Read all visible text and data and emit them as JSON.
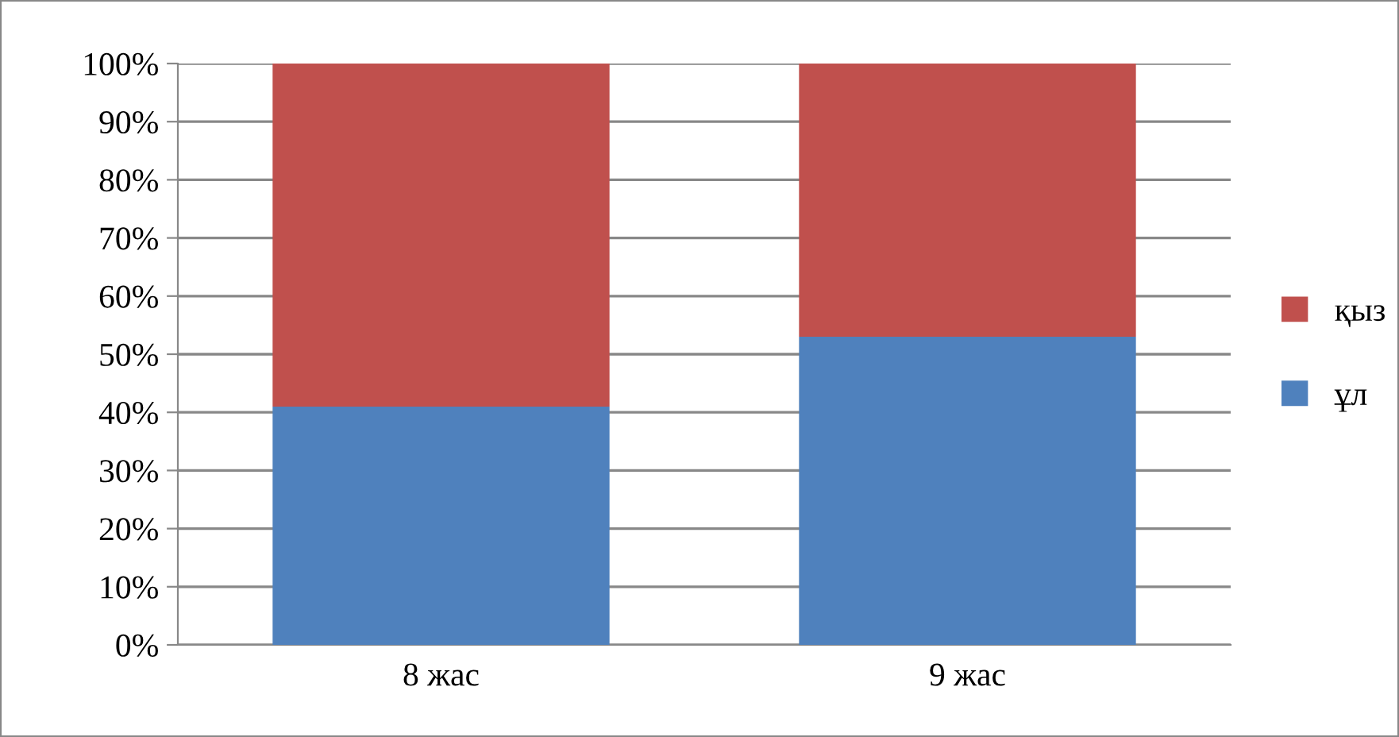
{
  "chart_data": {
    "type": "bar",
    "stacked": true,
    "categories": [
      "8 жас",
      "9 жас"
    ],
    "series": [
      {
        "name": "ұл",
        "color": "#4f81bd",
        "values": [
          41,
          53
        ]
      },
      {
        "name": "қыз",
        "color": "#c0504d",
        "values": [
          59,
          47
        ]
      }
    ],
    "ylim": [
      0,
      100
    ],
    "yticks": [
      {
        "value": 0,
        "label": "0%"
      },
      {
        "value": 10,
        "label": "10%"
      },
      {
        "value": 20,
        "label": "20%"
      },
      {
        "value": 30,
        "label": "30%"
      },
      {
        "value": 40,
        "label": "40%"
      },
      {
        "value": 50,
        "label": "50%"
      },
      {
        "value": 60,
        "label": "60%"
      },
      {
        "value": 70,
        "label": "70%"
      },
      {
        "value": 80,
        "label": "80%"
      },
      {
        "value": 90,
        "label": "90%"
      },
      {
        "value": 100,
        "label": "100%"
      }
    ],
    "grid": "y",
    "legend": "right"
  }
}
